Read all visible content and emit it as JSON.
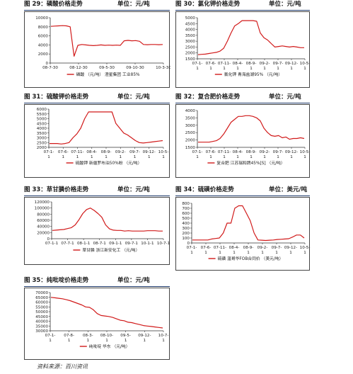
{
  "source": "资料来源：百川资讯",
  "chart_data": [
    {
      "id": "c29",
      "type": "line",
      "fig_label": "图 29：",
      "title": "磷酸价格走势",
      "unit": "单位：元/吨",
      "legend": "磷酸 （元/吨） 澄星集团 工业85%",
      "y_ticks": [
        0,
        2000,
        4000,
        6000,
        8000,
        10000
      ],
      "ylim": [
        0,
        10000
      ],
      "x_ticks": [
        "08-7-30",
        "08-12-30",
        "09-5-30",
        "09-10-30",
        "10-3-30"
      ],
      "color": "#d11a1a",
      "y": [
        8100,
        8150,
        8200,
        8250,
        8200,
        8000,
        1500,
        3900,
        4100,
        4000,
        3900,
        3850,
        3900,
        4000,
        3900,
        3950,
        3900,
        3950,
        3900,
        4900,
        5000,
        4900,
        4950,
        4800,
        4100,
        4050,
        4100,
        4100,
        4050,
        4100
      ]
    },
    {
      "id": "c30",
      "type": "line",
      "fig_label": "图 30：",
      "title": "氯化钾价格走势",
      "unit": "单位：元/吨",
      "legend": "氯化钾 青海盐湖95% （元/吨）",
      "y_ticks": [
        1500,
        2000,
        2500,
        3000,
        3500,
        4000,
        4500,
        5000
      ],
      "ylim": [
        1500,
        5000
      ],
      "x_ticks": [
        "07-1-1",
        "07-6-1",
        "07-11-1",
        "08-4-1",
        "08-9-1",
        "09-2-1",
        "09-7-1",
        "09-12-1",
        "10-5-1"
      ],
      "color": "#d11a1a",
      "y": [
        1850,
        1880,
        1900,
        1950,
        2000,
        2050,
        2150,
        2400,
        3000,
        3700,
        4300,
        4500,
        4750,
        4750,
        4750,
        4750,
        4700,
        3700,
        3300,
        3100,
        2800,
        2500,
        2550,
        2600,
        2550,
        2500,
        2550,
        2500,
        2450,
        2450
      ]
    },
    {
      "id": "c31",
      "type": "line",
      "fig_label": "图 31：",
      "title": "硫酸钾价格走势",
      "unit": "单位：元/吨",
      "legend": "硫酸钾 新疆罗布泊50%粉 （元/吨）",
      "y_ticks": [
        2000,
        2500,
        3000,
        3500,
        4000,
        4500,
        5000,
        5500,
        6000
      ],
      "ylim": [
        2000,
        6000
      ],
      "x_ticks": [
        "07-1-1",
        "07-6-1",
        "07-11-1",
        "08-4-1",
        "08-9-1",
        "09-2-1",
        "09-7-1",
        "09-12-1",
        "10-5-1"
      ],
      "color": "#d11a1a",
      "y": [
        2400,
        2400,
        2400,
        2350,
        2400,
        2500,
        3000,
        3400,
        4000,
        5000,
        5700,
        5700,
        5700,
        5700,
        5700,
        5700,
        5700,
        4500,
        4000,
        3500,
        3300,
        3000,
        2700,
        2500,
        2450,
        2500,
        2550,
        2600,
        2650,
        2700
      ]
    },
    {
      "id": "c32",
      "type": "line",
      "fig_label": "图 32：",
      "title": "复合肥价格走势",
      "unit": "单位：元/吨",
      "legend": "复合肥 江苏瑞和牌45%[S] （元/吨）",
      "y_ticks": [
        1500,
        2000,
        2500,
        3000,
        3500,
        4000
      ],
      "ylim": [
        1500,
        4000
      ],
      "x_ticks": [
        "07-1-1",
        "07-6-1",
        "07-11-1",
        "08-4-1",
        "08-9-1",
        "09-2-1",
        "09-7-1",
        "09-12-1",
        "10-5-1"
      ],
      "color": "#d11a1a",
      "y": [
        1850,
        1850,
        1850,
        1850,
        1900,
        1950,
        2100,
        2400,
        2800,
        3200,
        3400,
        3600,
        3600,
        3650,
        3650,
        3600,
        3500,
        3300,
        2800,
        2500,
        2300,
        2250,
        2300,
        2150,
        2200,
        2050,
        2100,
        2100,
        2150,
        2100
      ]
    },
    {
      "id": "c33",
      "type": "line",
      "fig_label": "图 33：",
      "title": "草甘膦价格走势",
      "unit": "单位：元/吨",
      "legend": "草甘膦 浙江新安化工 （元/吨）",
      "y_ticks": [
        0,
        20000,
        40000,
        60000,
        80000,
        100000,
        120000
      ],
      "ylim": [
        0,
        120000
      ],
      "x_ticks": [
        "07-1-1",
        "07-7-1",
        "08-1-1",
        "08-7-1",
        "09-1-1",
        "09-7-1",
        "10-1-1",
        "10-7-1"
      ],
      "color": "#d11a1a",
      "y": [
        27000,
        28000,
        29000,
        30000,
        33000,
        36000,
        45000,
        62000,
        82000,
        95000,
        100000,
        92000,
        82000,
        70000,
        45000,
        32000,
        28000,
        27000,
        27000,
        25000,
        26000,
        25000,
        25000,
        25000,
        25000,
        26000,
        26000,
        26000,
        25000,
        25000
      ]
    },
    {
      "id": "c34",
      "type": "line",
      "fig_label": "图 34：",
      "title": "硫磺价格走势",
      "unit": "单位：美元/吨",
      "legend": "硫磺 温哥华FOB合同价 （美元/吨）",
      "y_ticks": [
        0,
        100,
        200,
        300,
        400,
        500,
        600,
        700,
        800
      ],
      "ylim": [
        0,
        800
      ],
      "x_ticks": [
        "07-1-1",
        "07-6-1",
        "07-11-1",
        "08-4-1",
        "08-9-1",
        "09-2-1",
        "09-7-1",
        "09-12-1",
        "10-5-1"
      ],
      "color": "#d11a1a",
      "y": [
        60,
        60,
        60,
        60,
        60,
        80,
        90,
        100,
        200,
        400,
        400,
        700,
        750,
        750,
        600,
        450,
        200,
        60,
        55,
        50,
        55,
        60,
        70,
        75,
        80,
        85,
        120,
        160,
        160,
        100
      ]
    },
    {
      "id": "c35",
      "type": "line",
      "fig_label": "图 35：",
      "title": "纯吡啶价格走势",
      "unit": "单位：元/吨",
      "legend": "纯吡啶 华东 （元/吨）",
      "y_ticks": [
        30000,
        35000,
        40000,
        45000,
        50000,
        55000,
        60000,
        65000,
        70000
      ],
      "ylim": [
        30000,
        70000
      ],
      "x_ticks": [
        "07-1-1",
        "07-8-1",
        "08-3-1",
        "08-10-1",
        "09-5-1",
        "09-12-1",
        "10-7-1"
      ],
      "color": "#d11a1a",
      "y": [
        65000,
        64500,
        64000,
        63500,
        62500,
        61500,
        60000,
        58500,
        57000,
        55000,
        54500,
        52000,
        48000,
        46000,
        45500,
        45000,
        44000,
        42500,
        41000,
        40500,
        39000,
        38500,
        37500,
        36500,
        35500,
        35000,
        34500,
        34000,
        33500,
        33000
      ]
    }
  ]
}
